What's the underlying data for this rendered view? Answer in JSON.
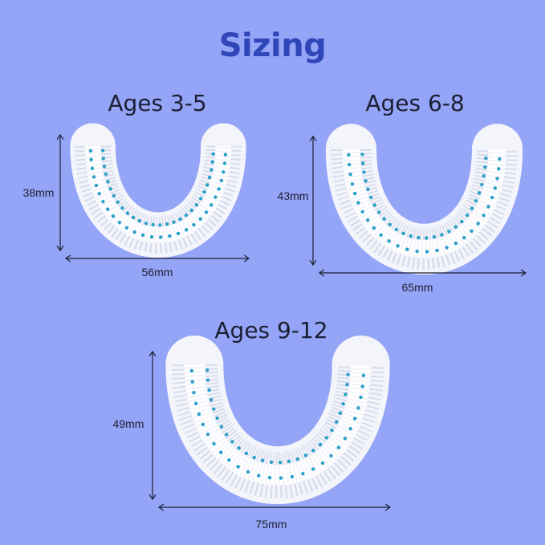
{
  "title": "Sizing",
  "colors": {
    "background": "#94a4f6",
    "title": "#2f46b8",
    "head": "#eef0f8",
    "dots": "#2aa0c8",
    "text": "#1c1f33"
  },
  "sizes": [
    {
      "label": "Ages 3-5",
      "height": "38mm",
      "width": "56mm"
    },
    {
      "label": "Ages 6-8",
      "height": "43mm",
      "width": "65mm"
    },
    {
      "label": "Ages 9-12",
      "height": "49mm",
      "width": "75mm"
    }
  ]
}
